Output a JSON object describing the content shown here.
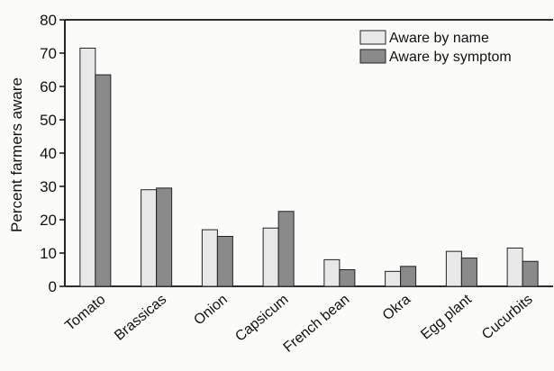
{
  "chart_data": {
    "type": "bar",
    "title": "",
    "xlabel": "",
    "ylabel": "Percent farmers aware",
    "ylim": [
      0,
      80
    ],
    "yticks": [
      0,
      10,
      20,
      30,
      40,
      50,
      60,
      70,
      80
    ],
    "grid": false,
    "legend_position": "top-right",
    "categories": [
      "Tomato",
      "Brassicas",
      "Onion",
      "Capsicum",
      "French bean",
      "Okra",
      "Egg plant",
      "Cucurbits"
    ],
    "series": [
      {
        "name": "Aware by name",
        "color": "#e8e8e8",
        "values": [
          71.5,
          29,
          17,
          17.5,
          8,
          4.5,
          10.5,
          11.5
        ]
      },
      {
        "name": "Aware by symptom",
        "color": "#8a8a8a",
        "values": [
          63.5,
          29.5,
          15,
          22.5,
          5,
          6,
          8.5,
          7.5
        ]
      }
    ]
  }
}
